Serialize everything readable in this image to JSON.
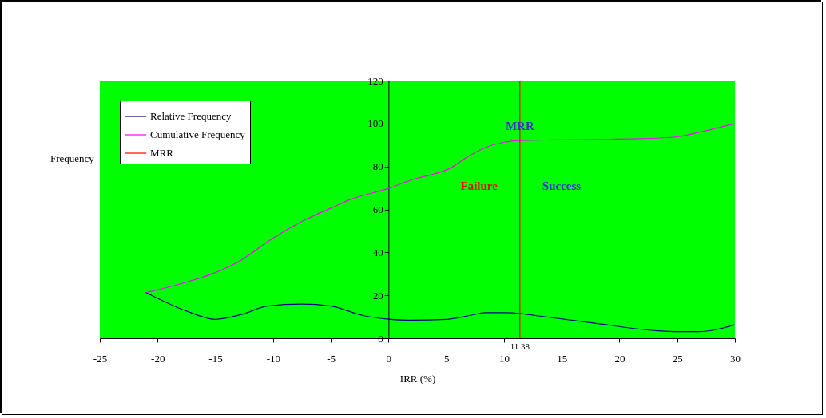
{
  "chart_data": {
    "type": "line",
    "xlabel": "IRR (%)",
    "ylabel": "Frequency",
    "xlim": [
      -25,
      30
    ],
    "xticks": [
      -25,
      -20,
      -15,
      -10,
      -5,
      0,
      5,
      10,
      15,
      20,
      25,
      30
    ],
    "ylim": [
      0,
      120
    ],
    "yticks": [
      0,
      20,
      40,
      60,
      80,
      100,
      120
    ],
    "grid": false,
    "legend": "top left",
    "series": [
      {
        "name": "Relative Frequency",
        "color": "#000080",
        "x": [
          -21,
          -17.4,
          -15,
          -12.6,
          -10.5,
          -7.5,
          -5,
          -2.2,
          0,
          2,
          5,
          7,
          8.4,
          10,
          11.5,
          13,
          18,
          23.3,
          25,
          26.8,
          30
        ],
        "values": [
          21.3,
          12.5,
          8.8,
          11.3,
          15,
          15.9,
          15,
          10.6,
          8.9,
          8.4,
          8.8,
          10.6,
          11.9,
          11.9,
          11.5,
          10.4,
          6.9,
          3.5,
          3.1,
          3.1,
          6.3
        ]
      },
      {
        "name": "Cumulative Frequency",
        "color": "#ff00ff",
        "x": [
          -21,
          -17.4,
          -15,
          -12.6,
          -10.3,
          -7.5,
          -5,
          -3.4,
          0,
          2.4,
          3.8,
          5.2,
          7,
          8.4,
          10,
          11.5,
          15.7,
          21.7,
          25,
          27.2,
          30
        ],
        "values": [
          21.3,
          26.3,
          30.6,
          36.9,
          45.6,
          54.4,
          60.6,
          64.4,
          69.8,
          74.4,
          76.3,
          78.8,
          85,
          88.8,
          91.3,
          92.1,
          92.5,
          92.9,
          93.8,
          96.3,
          100
        ]
      },
      {
        "name": "MRR",
        "color": "#ff0000",
        "x": [
          11.38,
          11.38
        ],
        "values": [
          0,
          120
        ]
      }
    ],
    "annotations": [
      {
        "text": "MRR",
        "x": 11.38,
        "y": 99
      },
      "Failure",
      "Success",
      {
        "text": "11.38",
        "x": 11.38,
        "y": 0
      }
    ]
  }
}
